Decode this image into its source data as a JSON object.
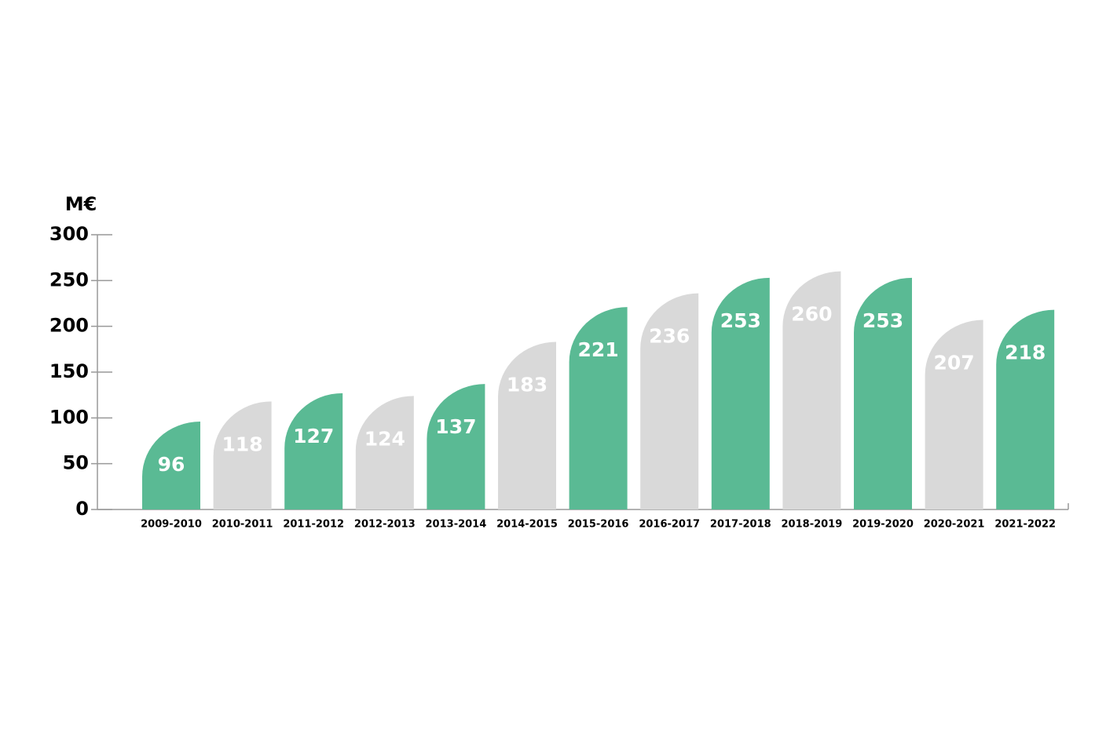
{
  "chart_data": {
    "type": "bar",
    "y_label": "M€",
    "categories": [
      "2009-2010",
      "2010-2011",
      "2011-2012",
      "2012-2013",
      "2013-2014",
      "2014-2015",
      "2015-2016",
      "2016-2017",
      "2017-2018",
      "2018-2019",
      "2019-2020",
      "2020-2021",
      "2021-2022"
    ],
    "values": [
      96,
      118,
      127,
      124,
      137,
      183,
      221,
      236,
      253,
      260,
      253,
      207,
      218
    ],
    "colors": [
      "#5aba94",
      "#d9d9d9",
      "#5aba94",
      "#d9d9d9",
      "#5aba94",
      "#d9d9d9",
      "#5aba94",
      "#d9d9d9",
      "#5aba94",
      "#d9d9d9",
      "#5aba94",
      "#d9d9d9",
      "#5aba94"
    ],
    "ylim": [
      0,
      300
    ],
    "yticks": [
      0,
      50,
      100,
      150,
      200,
      250,
      300
    ],
    "grid": false
  }
}
